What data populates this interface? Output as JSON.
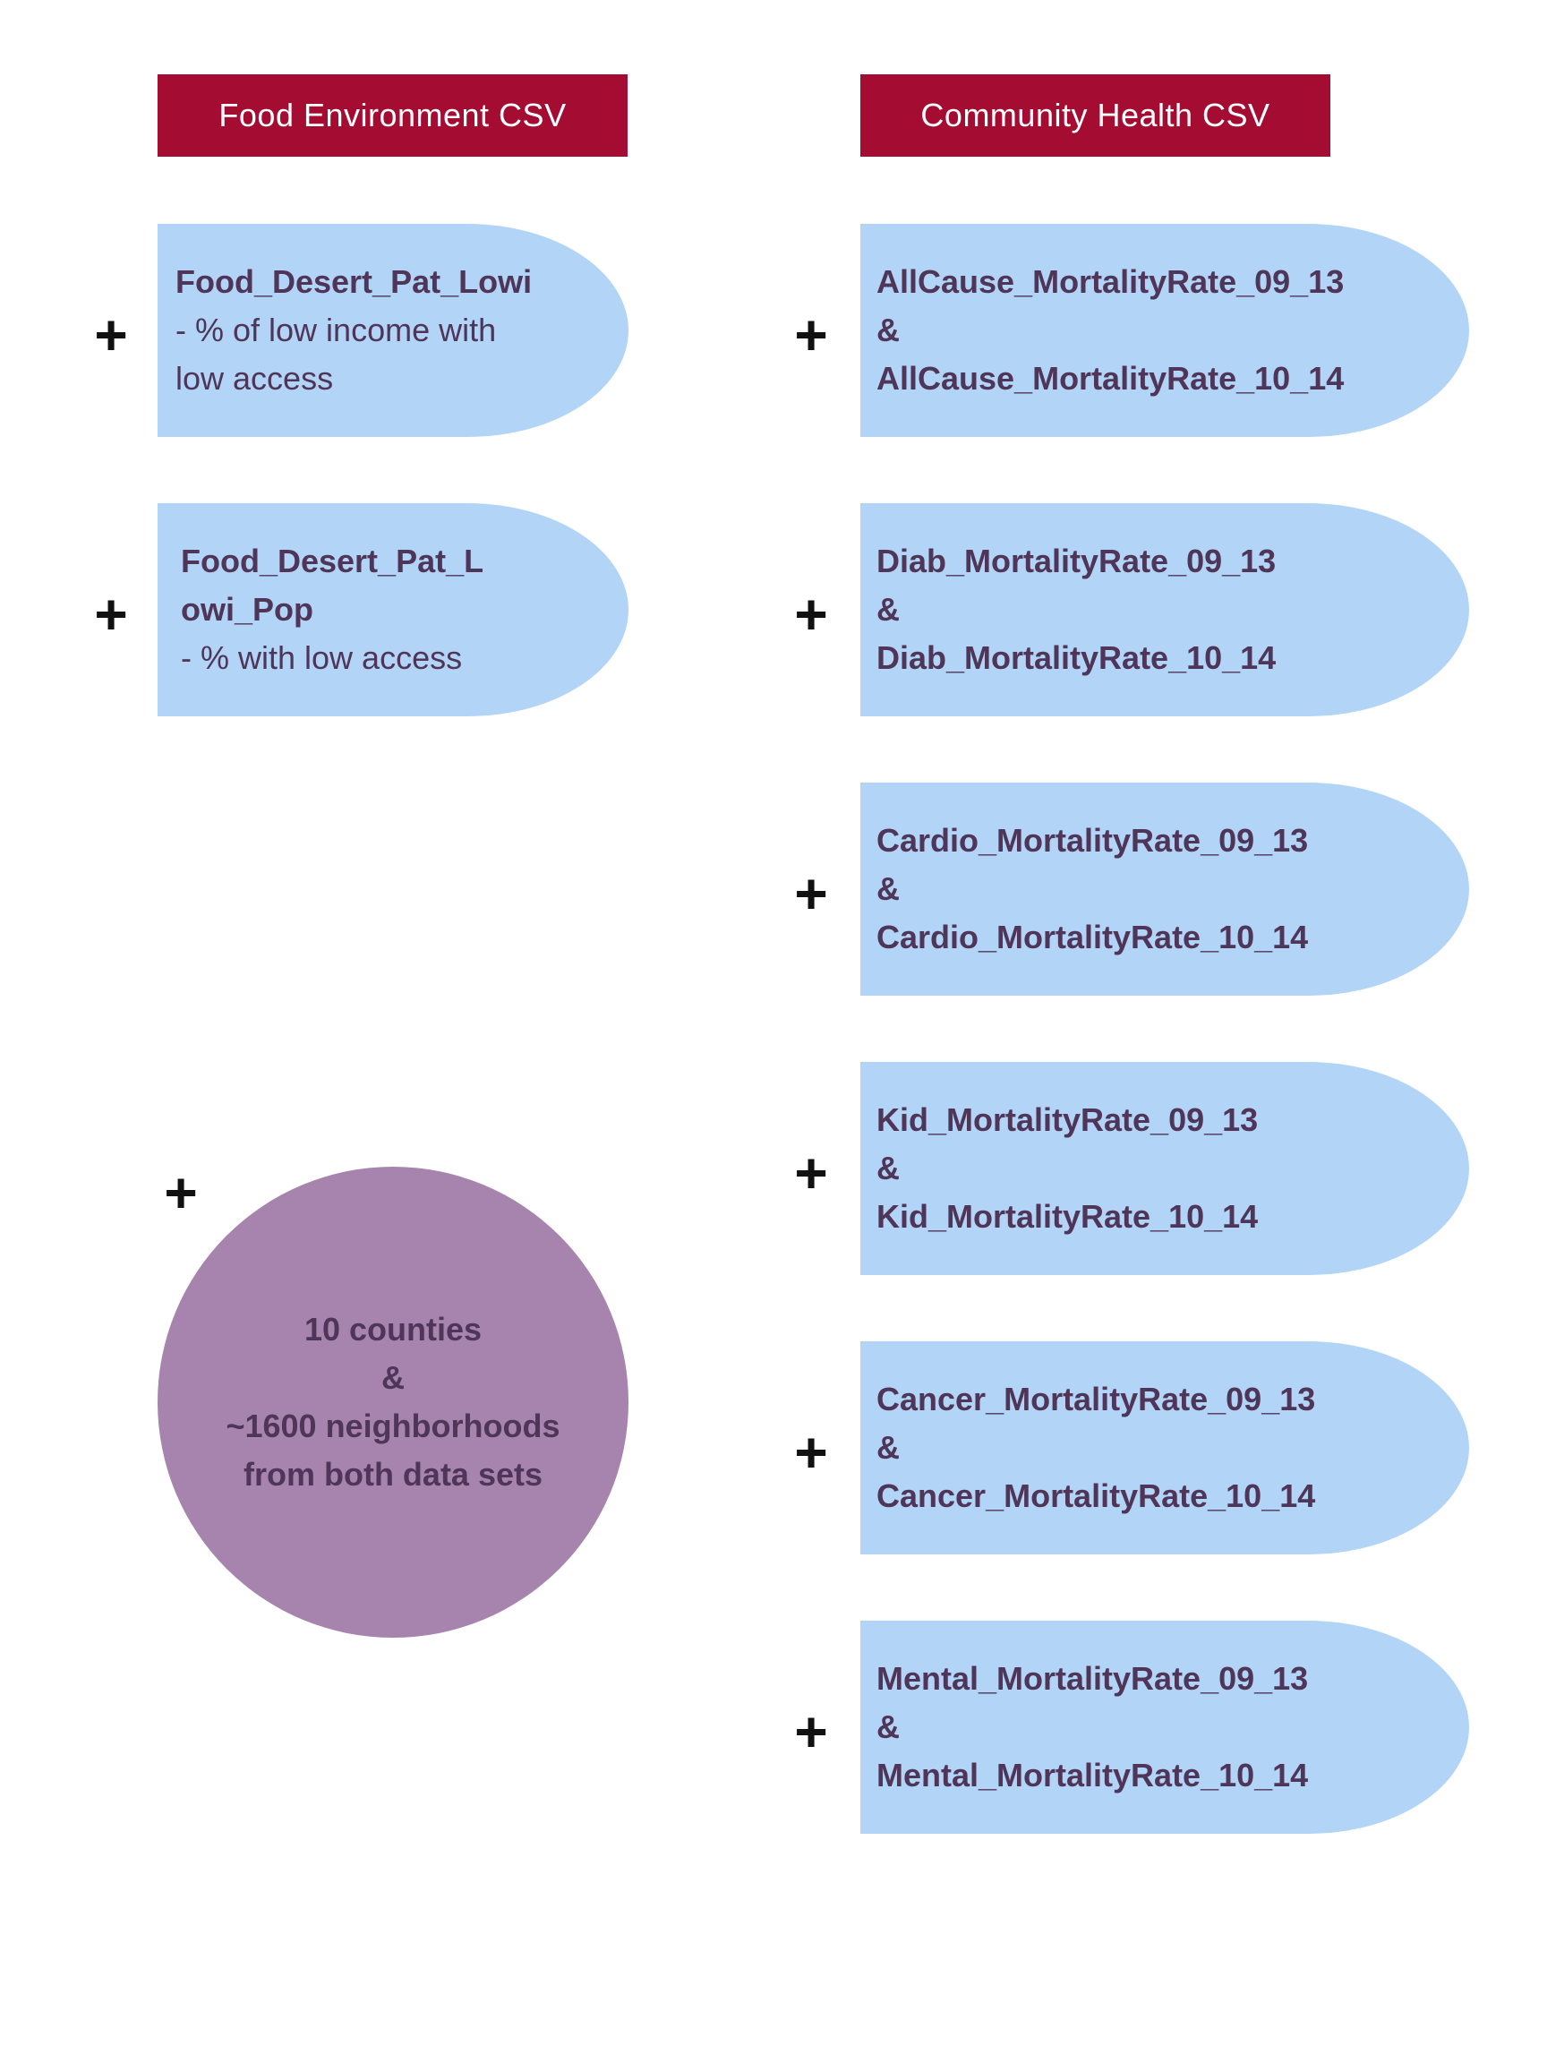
{
  "colors": {
    "header_bg": "#a50c32",
    "pill_bg": "#b1d4f7",
    "circle_bg": "#a784ad",
    "text_dark": "#4f3557"
  },
  "headers": {
    "left": "Food Environment CSV",
    "right": "Community Health CSV"
  },
  "plus_symbol": "+",
  "left_items": [
    {
      "title": "Food_Desert_Pat_Lowi",
      "desc_line1": "- % of low income with",
      "desc_line2": "low access"
    },
    {
      "title_line1": "Food_Desert_Pat_L",
      "title_line2": "owi_Pop",
      "desc": "- % with low access"
    }
  ],
  "right_items": [
    {
      "a": "AllCause_MortalityRate_09_13",
      "amp": "&",
      "b": "AllCause_MortalityRate_10_14"
    },
    {
      "a": "Diab_MortalityRate_09_13",
      "amp": "&",
      "b": "Diab_MortalityRate_10_14"
    },
    {
      "a": "Cardio_MortalityRate_09_13",
      "amp": "&",
      "b": "Cardio_MortalityRate_10_14"
    },
    {
      "a": "Kid_MortalityRate_09_13",
      "amp": "&",
      "b": "Kid_MortalityRate_10_14"
    },
    {
      "a": "Cancer_MortalityRate_09_13",
      "amp": "&",
      "b": "Cancer_MortalityRate_10_14"
    },
    {
      "a": "Mental_MortalityRate_09_13",
      "amp": "&",
      "b": "Mental_MortalityRate_10_14"
    }
  ],
  "summary": {
    "line1": "10 counties",
    "line2": "&",
    "line3": "~1600 neighborhoods",
    "line4": "from both data sets"
  }
}
